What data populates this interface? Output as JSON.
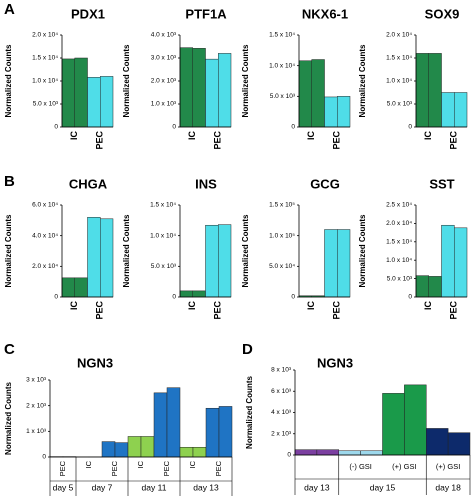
{
  "panel_labels": [
    "A",
    "B",
    "C",
    "D"
  ],
  "chart_data": [
    {
      "type": "bar",
      "title": "PDX1",
      "ylabel": "Normalized Counts",
      "categories": [
        "IC",
        "PEC"
      ],
      "values": [
        [
          14800,
          15000
        ],
        [
          10800,
          11000
        ]
      ],
      "colors": [
        "#22894a",
        "#4fdde8"
      ],
      "ylim": [
        0,
        20000
      ],
      "yticks": [
        0,
        {
          "value": 5000,
          "label": "5.0 x 10³"
        },
        {
          "value": 10000,
          "label": "1.0 x 10⁴"
        },
        {
          "value": 15000,
          "label": "1.5 x 10⁴"
        },
        {
          "value": 20000,
          "label": "2.0 x 10⁴"
        }
      ]
    },
    {
      "type": "bar",
      "title": "PTF1A",
      "ylabel": "Normalized Counts",
      "categories": [
        "IC",
        "PEC"
      ],
      "values": [
        [
          3450,
          3420
        ],
        [
          2950,
          3200
        ]
      ],
      "colors": [
        "#22894a",
        "#4fdde8"
      ],
      "ylim": [
        0,
        4000
      ],
      "yticks": [
        0,
        {
          "value": 1000,
          "label": "1.0 x 10³"
        },
        {
          "value": 2000,
          "label": "2.0 x 10³"
        },
        {
          "value": 3000,
          "label": "3.0 x 10³"
        },
        {
          "value": 4000,
          "label": "4.0 x 10³"
        }
      ]
    },
    {
      "type": "bar",
      "title": "NKX6-1",
      "ylabel": "Normalized Counts",
      "categories": [
        "IC",
        "PEC"
      ],
      "values": [
        [
          10800,
          11000
        ],
        [
          4900,
          5000
        ]
      ],
      "colors": [
        "#22894a",
        "#4fdde8"
      ],
      "ylim": [
        0,
        15000
      ],
      "yticks": [
        0,
        {
          "value": 5000,
          "label": "5.0 x 10³"
        },
        {
          "value": 10000,
          "label": "1.0 x 10⁴"
        },
        {
          "value": 15000,
          "label": "1.5 x 10⁴"
        }
      ]
    },
    {
      "type": "bar",
      "title": "SOX9",
      "ylabel": "Normalized Counts",
      "categories": [
        "IC",
        "PEC"
      ],
      "values": [
        [
          16000,
          16000
        ],
        [
          7500,
          7500
        ]
      ],
      "colors": [
        "#22894a",
        "#4fdde8"
      ],
      "ylim": [
        0,
        20000
      ],
      "yticks": [
        0,
        {
          "value": 5000,
          "label": "5.0 x 10³"
        },
        {
          "value": 10000,
          "label": "1.0 x 10⁴"
        },
        {
          "value": 15000,
          "label": "1.5 x 10⁴"
        },
        {
          "value": 20000,
          "label": "2.0 x 10⁴"
        }
      ]
    },
    {
      "type": "bar",
      "title": "CHGA",
      "ylabel": "Normalized Counts",
      "categories": [
        "IC",
        "PEC"
      ],
      "values": [
        [
          12500,
          12500
        ],
        [
          52000,
          51000
        ]
      ],
      "colors": [
        "#22894a",
        "#4fdde8"
      ],
      "ylim": [
        0,
        60000
      ],
      "yticks": [
        0,
        {
          "value": 20000,
          "label": "2.0 x 10⁴"
        },
        {
          "value": 40000,
          "label": "4.0 x 10⁴"
        },
        {
          "value": 60000,
          "label": "6.0 x 10⁴"
        }
      ]
    },
    {
      "type": "bar",
      "title": "INS",
      "ylabel": "Normalized Counts",
      "categories": [
        "IC",
        "PEC"
      ],
      "values": [
        [
          1000,
          1000
        ],
        [
          11700,
          11800
        ]
      ],
      "colors": [
        "#22894a",
        "#4fdde8"
      ],
      "ylim": [
        0,
        15000
      ],
      "yticks": [
        0,
        {
          "value": 5000,
          "label": "5.0 x 10³"
        },
        {
          "value": 10000,
          "label": "1.0 x 10⁴"
        },
        {
          "value": 15000,
          "label": "1.5 x 10⁴"
        }
      ]
    },
    {
      "type": "bar",
      "title": "GCG",
      "ylabel": "Normalized Counts",
      "categories": [
        "IC",
        "PEC"
      ],
      "values": [
        [
          2000,
          2000
        ],
        [
          110000,
          110000
        ]
      ],
      "colors": [
        "#22894a",
        "#4fdde8"
      ],
      "ylim": [
        0,
        150000
      ],
      "yticks": [
        0,
        {
          "value": 50000,
          "label": "5.0 x 10⁴"
        },
        {
          "value": 100000,
          "label": "1.0 x 10⁵"
        },
        {
          "value": 150000,
          "label": "1.5 x 10⁵"
        }
      ]
    },
    {
      "type": "bar",
      "title": "SST",
      "ylabel": "Normalized Counts",
      "categories": [
        "IC",
        "PEC"
      ],
      "values": [
        [
          5800,
          5600
        ],
        [
          19500,
          18800
        ]
      ],
      "colors": [
        "#22894a",
        "#4fdde8"
      ],
      "ylim": [
        0,
        25000
      ],
      "yticks": [
        0,
        {
          "value": 5000,
          "label": "5.0 x 10³"
        },
        {
          "value": 10000,
          "label": "1.0 x 10⁴"
        },
        {
          "value": 15000,
          "label": "1.5 x 10⁴"
        },
        {
          "value": 20000,
          "label": "2.0 x 10⁴"
        },
        {
          "value": 25000,
          "label": "2.5 x 10⁴"
        }
      ]
    },
    {
      "type": "bar",
      "title": "NGN3",
      "ylabel": "Normalized Counts",
      "ylim": [
        0,
        3000
      ],
      "yticks": [
        0,
        {
          "value": 1000,
          "label": "1 x 10³"
        },
        {
          "value": 2000,
          "label": "2 x 10³"
        },
        {
          "value": 3000,
          "label": "3 x 10³"
        }
      ],
      "groups": [
        {
          "name": "day 5",
          "categories": [
            "PEC"
          ],
          "values": [
            [
              15,
              15
            ]
          ],
          "colors": [
            "#1f74c4"
          ]
        },
        {
          "name": "day 7",
          "categories": [
            "IC",
            "PEC"
          ],
          "values": [
            [
              5,
              5
            ],
            [
              600,
              560
            ]
          ],
          "colors": [
            "#8ed14f",
            "#1f74c4"
          ]
        },
        {
          "name": "day 11",
          "categories": [
            "IC",
            "PEC"
          ],
          "values": [
            [
              800,
              800
            ],
            [
              2500,
              2700
            ]
          ],
          "colors": [
            "#8ed14f",
            "#1f74c4"
          ]
        },
        {
          "name": "day 13",
          "categories": [
            "IC",
            "PEC"
          ],
          "values": [
            [
              380,
              380
            ],
            [
              1900,
              1970
            ]
          ],
          "colors": [
            "#8ed14f",
            "#1f74c4"
          ]
        }
      ]
    },
    {
      "type": "bar",
      "title": "NGN3",
      "ylabel": "Normalized Counts",
      "ylim": [
        0,
        8000
      ],
      "yticks": [
        0,
        {
          "value": 2000,
          "label": "2 x 10³"
        },
        {
          "value": 4000,
          "label": "4 x 10³"
        },
        {
          "value": 6000,
          "label": "6 x 10³"
        },
        {
          "value": 8000,
          "label": "8 x 10³"
        }
      ],
      "groups": [
        {
          "name": "day 13",
          "categories": [
            null
          ],
          "values": [
            [
              500,
              500
            ]
          ],
          "colors": [
            "#7b3fa0"
          ]
        },
        {
          "name": "day 15",
          "categories": [
            "(-) GSI",
            "(+) GSI"
          ],
          "values": [
            [
              400,
              400
            ],
            [
              5800,
              6600
            ]
          ],
          "colors": [
            "#9dd8ec",
            "#1a9a4a"
          ]
        },
        {
          "name": "day 18",
          "categories": [
            "(+) GSI"
          ],
          "values": [
            [
              2500,
              2100
            ]
          ],
          "colors": [
            "#0d2a6b"
          ]
        }
      ]
    }
  ]
}
